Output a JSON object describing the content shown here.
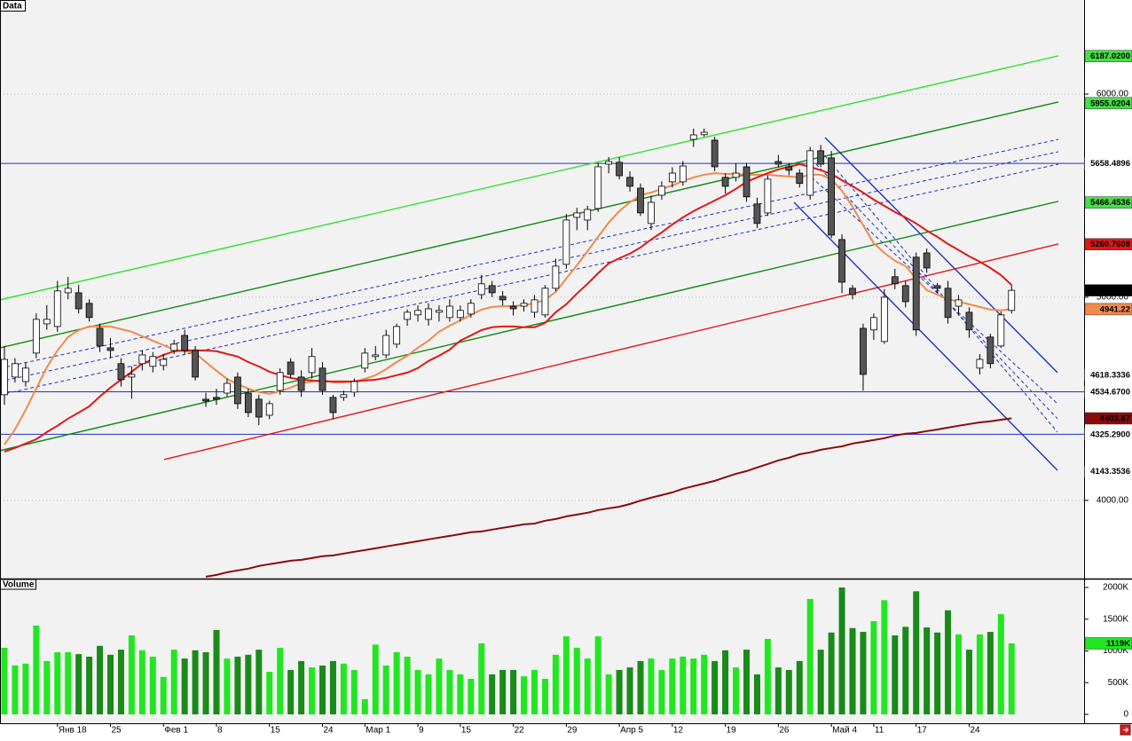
{
  "chart_data": [
    {
      "type": "candlestick",
      "title": "Data",
      "categories": [
        null,
        null,
        null,
        null,
        null,
        "Янв 18",
        null,
        null,
        null,
        null,
        "25",
        null,
        null,
        null,
        null,
        "Фев 1",
        null,
        null,
        null,
        null,
        "8",
        null,
        null,
        null,
        null,
        "15",
        null,
        null,
        null,
        null,
        "24",
        null,
        null,
        null,
        "Мар 1",
        null,
        null,
        null,
        null,
        "9",
        null,
        null,
        null,
        "15",
        null,
        null,
        null,
        null,
        "22",
        null,
        null,
        null,
        null,
        "29",
        null,
        null,
        null,
        null,
        "Апр 5",
        null,
        null,
        null,
        null,
        "12",
        null,
        null,
        null,
        null,
        "19",
        null,
        null,
        null,
        null,
        "26",
        null,
        null,
        null,
        null,
        "Май 4",
        null,
        null,
        null,
        "11",
        null,
        null,
        null,
        "17",
        null,
        null,
        null,
        null,
        "24",
        null,
        null,
        null,
        null
      ],
      "open": [
        4520,
        4607,
        4585,
        4725,
        4869,
        4856,
        5022,
        5022,
        4970,
        4847,
        4751,
        4673,
        4607,
        4673,
        4660,
        4664,
        4738,
        4812,
        4738,
        4498,
        4507,
        4528,
        4607,
        4528,
        4498,
        4419,
        4541,
        4681,
        4607,
        4629,
        4651,
        4507,
        4507,
        4533,
        4651,
        4708,
        4716,
        4769,
        4891,
        4913,
        4891,
        4926,
        4900,
        4900,
        4917,
        5013,
        5057,
        5004,
        4956,
        4956,
        4926,
        4913,
        5044,
        5162,
        5393,
        5380,
        5437,
        5655,
        5664,
        5590,
        5537,
        5363,
        5502,
        5568,
        5568,
        5777,
        5800,
        5773,
        5590,
        5590,
        5642,
        5459,
        5415,
        5668,
        5642,
        5611,
        5502,
        5721,
        5686,
        5284,
        5044,
        4847,
        4839,
        4782,
        5101,
        5057,
        5197,
        5218,
        5057,
        5044,
        4956,
        4926,
        4651,
        4804,
        4760,
        4935
      ],
      "high": [
        4760,
        4700,
        4680,
        4920,
        4960,
        5080,
        5100,
        5060,
        4990,
        4870,
        4800,
        4700,
        4660,
        4740,
        4730,
        4720,
        4790,
        4840,
        4760,
        4530,
        4550,
        4600,
        4630,
        4550,
        4520,
        4490,
        4650,
        4700,
        4640,
        4750,
        4680,
        4520,
        4540,
        4600,
        4750,
        4760,
        4840,
        4870,
        4940,
        4960,
        4970,
        4960,
        4990,
        4960,
        4990,
        5110,
        5080,
        5030,
        4980,
        4990,
        5010,
        5060,
        5190,
        5410,
        5440,
        5450,
        5660,
        5690,
        5690,
        5620,
        5560,
        5500,
        5570,
        5640,
        5670,
        5830,
        5830,
        5790,
        5610,
        5660,
        5660,
        5490,
        5600,
        5700,
        5660,
        5630,
        5740,
        5750,
        5720,
        5310,
        5060,
        4870,
        4920,
        5040,
        5140,
        5080,
        5220,
        5240,
        5070,
        5080,
        5010,
        4950,
        4720,
        4820,
        4930,
        5060
      ],
      "low": [
        4470,
        4580,
        4560,
        4700,
        4840,
        4830,
        4990,
        4920,
        4880,
        4730,
        4700,
        4560,
        4500,
        4640,
        4630,
        4640,
        4720,
        4720,
        4590,
        4460,
        4470,
        4510,
        4450,
        4410,
        4370,
        4400,
        4520,
        4600,
        4510,
        4600,
        4520,
        4400,
        4490,
        4510,
        4630,
        4690,
        4700,
        4750,
        4860,
        4880,
        4860,
        4880,
        4880,
        4880,
        4900,
        4990,
        5000,
        4960,
        4910,
        4930,
        4900,
        4900,
        5030,
        5140,
        5330,
        5330,
        5420,
        5610,
        5580,
        5520,
        5400,
        5330,
        5480,
        5540,
        5550,
        5740,
        5790,
        5620,
        5510,
        5570,
        5470,
        5340,
        5400,
        5640,
        5600,
        5540,
        5480,
        5640,
        5290,
        5020,
        4990,
        4540,
        4790,
        4770,
        5040,
        4950,
        4810,
        5120,
        5020,
        4870,
        4910,
        4800,
        4620,
        4650,
        4750,
        4920
      ],
      "close": [
        4694,
        4673,
        4651,
        4891,
        4891,
        5031,
        5044,
        4943,
        4900,
        4760,
        4738,
        4594,
        4620,
        4716,
        4708,
        4694,
        4769,
        4738,
        4607,
        4489,
        4498,
        4576,
        4476,
        4432,
        4410,
        4476,
        4629,
        4620,
        4541,
        4708,
        4541,
        4432,
        4520,
        4585,
        4725,
        4716,
        4812,
        4856,
        4926,
        4935,
        4943,
        4935,
        4956,
        4935,
        4970,
        5066,
        5022,
        4987,
        4943,
        4970,
        4987,
        5044,
        5153,
        5380,
        5415,
        5432,
        5642,
        5668,
        5598,
        5546,
        5415,
        5467,
        5546,
        5611,
        5646,
        5799,
        5812,
        5642,
        5546,
        5611,
        5494,
        5363,
        5581,
        5655,
        5625,
        5560,
        5721,
        5655,
        5306,
        5074,
        5013,
        4620,
        4900,
        5000,
        5066,
        4978,
        4839,
        5144,
        5044,
        4900,
        4987,
        4839,
        4694,
        4673,
        4913,
        5033.93
      ],
      "up_color": "#ffffff",
      "down_color": "#555555",
      "ylim": [
        3615,
        6463
      ],
      "yticks": [
        {
          "value": 6000,
          "label": "6000.00"
        },
        {
          "value": 5000,
          "label": "5000.00"
        },
        {
          "value": 4000,
          "label": "4000.00"
        }
      ],
      "grid": true,
      "overlays": [
        {
          "color": "#f08a4b",
          "values": [
            4275,
            4349,
            4445,
            4550,
            4655,
            4738,
            4804,
            4838,
            4856,
            4856,
            4856,
            4843,
            4830,
            4808,
            4786,
            4764,
            4742,
            4734,
            4725,
            4681,
            4638,
            4598,
            4572,
            4550,
            4533,
            4524,
            4537,
            4555,
            4576,
            4585,
            4594,
            4581,
            4581,
            4585,
            4598,
            4616,
            4646,
            4681,
            4712,
            4751,
            4786,
            4830,
            4860,
            4886,
            4913,
            4939,
            4952,
            4956,
            4956,
            4961,
            4970,
            4987,
            5026,
            5092,
            5157,
            5227,
            5297,
            5367,
            5424,
            5467,
            5502,
            5515,
            5533,
            5550,
            5572,
            5590,
            5603,
            5611,
            5607,
            5607,
            5603,
            5603,
            5603,
            5598,
            5594,
            5590,
            5603,
            5603,
            5581,
            5524,
            5446,
            5354,
            5266,
            5218,
            5179,
            5153,
            5092,
            5035,
            5013,
            4991,
            4978,
            4965,
            4952,
            4939,
            4935,
            4941.22
          ]
        },
        {
          "color": "#e01818",
          "values": [
            4240,
            4258,
            4280,
            4301,
            4336,
            4367,
            4402,
            4432,
            4463,
            4511,
            4555,
            4594,
            4633,
            4673,
            4694,
            4716,
            4734,
            4738,
            4738,
            4738,
            4734,
            4721,
            4708,
            4681,
            4659,
            4633,
            4616,
            4603,
            4594,
            4590,
            4585,
            4585,
            4585,
            4585,
            4590,
            4594,
            4603,
            4616,
            4629,
            4651,
            4686,
            4712,
            4742,
            4786,
            4812,
            4838,
            4852,
            4856,
            4856,
            4852,
            4852,
            4873,
            4926,
            4965,
            5018,
            5066,
            5118,
            5166,
            5192,
            5214,
            5245,
            5284,
            5319,
            5358,
            5393,
            5424,
            5450,
            5476,
            5502,
            5533,
            5568,
            5590,
            5611,
            5629,
            5642,
            5655,
            5642,
            5625,
            5607,
            5576,
            5546,
            5515,
            5480,
            5450,
            5419,
            5393,
            5363,
            5328,
            5297,
            5262,
            5232,
            5201,
            5175,
            5144,
            5109,
            5060
          ]
        },
        {
          "color": "#8b0a0a",
          "values": [
            null,
            null,
            null,
            null,
            null,
            null,
            null,
            null,
            null,
            null,
            null,
            null,
            null,
            null,
            null,
            null,
            null,
            null,
            null,
            3624,
            3633,
            3646,
            3655,
            3664,
            3677,
            3686,
            3694,
            3703,
            3707,
            3716,
            3725,
            3729,
            3738,
            3747,
            3755,
            3764,
            3773,
            3782,
            3790,
            3799,
            3808,
            3817,
            3825,
            3834,
            3843,
            3847,
            3856,
            3865,
            3873,
            3882,
            3886,
            3900,
            3908,
            3921,
            3930,
            3939,
            3952,
            3961,
            3969,
            3982,
            3999,
            4013,
            4026,
            4039,
            4057,
            4070,
            4083,
            4096,
            4114,
            4131,
            4144,
            4162,
            4179,
            4197,
            4210,
            4227,
            4236,
            4249,
            4258,
            4266,
            4280,
            4288,
            4297,
            4306,
            4319,
            4328,
            4332,
            4341,
            4349,
            4358,
            4367,
            4376,
            4384,
            4389,
            4397,
            4403.67
          ]
        }
      ],
      "lines": [
        {
          "color": "#33e033",
          "dashed": false,
          "x": [
            -0.42,
            99.41
          ],
          "values": [
            4987,
            6188
          ]
        },
        {
          "color": "#108a10",
          "dashed": false,
          "x": [
            -0.42,
            99.41
          ],
          "values": [
            4751,
            5961
          ]
        },
        {
          "color": "#108a10",
          "dashed": false,
          "x": [
            -0.42,
            99.41
          ],
          "values": [
            4245,
            5472
          ]
        },
        {
          "color": "#e01818",
          "dashed": false,
          "x": [
            15.06,
            99.41
          ],
          "values": [
            4201,
            5262
          ]
        },
        {
          "color": "#2030c8",
          "dashed": true,
          "x": [
            -0.42,
            99.41
          ],
          "values": [
            4651,
            5777
          ]
        },
        {
          "color": "#2030c8",
          "dashed": true,
          "x": [
            -0.42,
            99.41
          ],
          "values": [
            4585,
            5716
          ]
        },
        {
          "color": "#2030c8",
          "dashed": true,
          "x": [
            -0.42,
            99.41
          ],
          "values": [
            4520,
            5655
          ]
        },
        {
          "color": "#2030c8",
          "dashed": false,
          "x": [
            77.41,
            99.33
          ],
          "values": [
            5786,
            4629
          ]
        },
        {
          "color": "#2030c8",
          "dashed": false,
          "x": [
            74.48,
            99.33
          ],
          "values": [
            5467,
            4148
          ]
        },
        {
          "color": "#2030c8",
          "dashed": true,
          "x": [
            76.15,
            99.33
          ],
          "values": [
            5590,
            4476
          ]
        },
        {
          "color": "#2030c8",
          "dashed": true,
          "x": [
            76.57,
            99.33
          ],
          "values": [
            5655,
            4402
          ]
        },
        {
          "color": "#2030c8",
          "dashed": true,
          "x": [
            76.99,
            99.33
          ],
          "values": [
            5721,
            4336
          ]
        }
      ],
      "hlines": [
        {
          "color": "#2030c8",
          "value": 5658.4896
        },
        {
          "color": "#2030c8",
          "value": 4534.67
        },
        {
          "color": "#2030c8",
          "value": 4325.29
        }
      ],
      "tags": [
        {
          "value": 6187.02,
          "label": "6187.0200",
          "color": "#44e044",
          "text_color": "#000000"
        },
        {
          "value": 5955.0204,
          "color": "#44e044",
          "text_color": "#000000"
        },
        {
          "value": 5658.4896,
          "color": "#ffffff",
          "text_color": "#2030c8"
        },
        {
          "value": 5466.4536,
          "color": "#44e044",
          "text_color": "#000000"
        },
        {
          "value": 5260.7608,
          "color": "#e01818",
          "text_color": "#000000"
        },
        {
          "value": 5033.93,
          "color": "#000000",
          "text_color": "#ffffff"
        },
        {
          "value": 4941.22,
          "color": "#f08a4b",
          "text_color": "#000000"
        },
        {
          "value": 4618.3336,
          "color": "#ffffff",
          "text_color": "#2030c8"
        },
        {
          "value": 4534.67,
          "label": "4534.6700",
          "color": "#ffffff",
          "text_color": "#2030c8"
        },
        {
          "value": 4403.67,
          "color": "#8b0a0a",
          "text_color": "#ffffff"
        },
        {
          "value": 4325.29,
          "label": "4325.2900",
          "color": "#ffffff",
          "text_color": "#2030c8"
        },
        {
          "value": 4143.3536,
          "color": "#ffffff",
          "text_color": "#2030c8"
        }
      ]
    },
    {
      "type": "bar",
      "title": "Volume",
      "values": [
        1050000,
        770000,
        800000,
        1400000,
        840000,
        980000,
        980000,
        950000,
        910000,
        1080000,
        940000,
        1020000,
        1245000,
        1010000,
        910000,
        590000,
        1020000,
        880000,
        1010000,
        980000,
        1330000,
        880000,
        910000,
        940000,
        1020000,
        670000,
        1050000,
        700000,
        840000,
        740000,
        770000,
        840000,
        800000,
        700000,
        240000,
        1100000,
        770000,
        980000,
        910000,
        700000,
        630000,
        880000,
        700000,
        630000,
        560000,
        1120000,
        630000,
        700000,
        700000,
        600000,
        700000,
        560000,
        940000,
        1230000,
        1050000,
        880000,
        1230000,
        630000,
        700000,
        740000,
        840000,
        880000,
        700000,
        880000,
        910000,
        880000,
        940000,
        840000,
        1010000,
        740000,
        1020000,
        630000,
        1190000,
        740000,
        700000,
        840000,
        1820000,
        1020000,
        1290000,
        2000000,
        1360000,
        1300000,
        1470000,
        1800000,
        1245000,
        1380000,
        1940000,
        1370000,
        1290000,
        1640000,
        1260000,
        1020000,
        1260000,
        1300000,
        1580000,
        1119000
      ],
      "up_color": "#22e622",
      "down_color": "#1a8a1a",
      "ylim": [
        0,
        2098000
      ],
      "yticks": [
        0,
        {
          "value": 500000,
          "label": "500K"
        },
        {
          "value": 1000000,
          "label": "1000K"
        },
        {
          "value": 1500000,
          "label": "1500K"
        },
        {
          "value": 2000000,
          "label": "2000K"
        }
      ],
      "tags": [
        {
          "value": 1119000,
          "label": "1119K",
          "color": "#22e622",
          "text_color": "#000000"
        }
      ]
    }
  ]
}
